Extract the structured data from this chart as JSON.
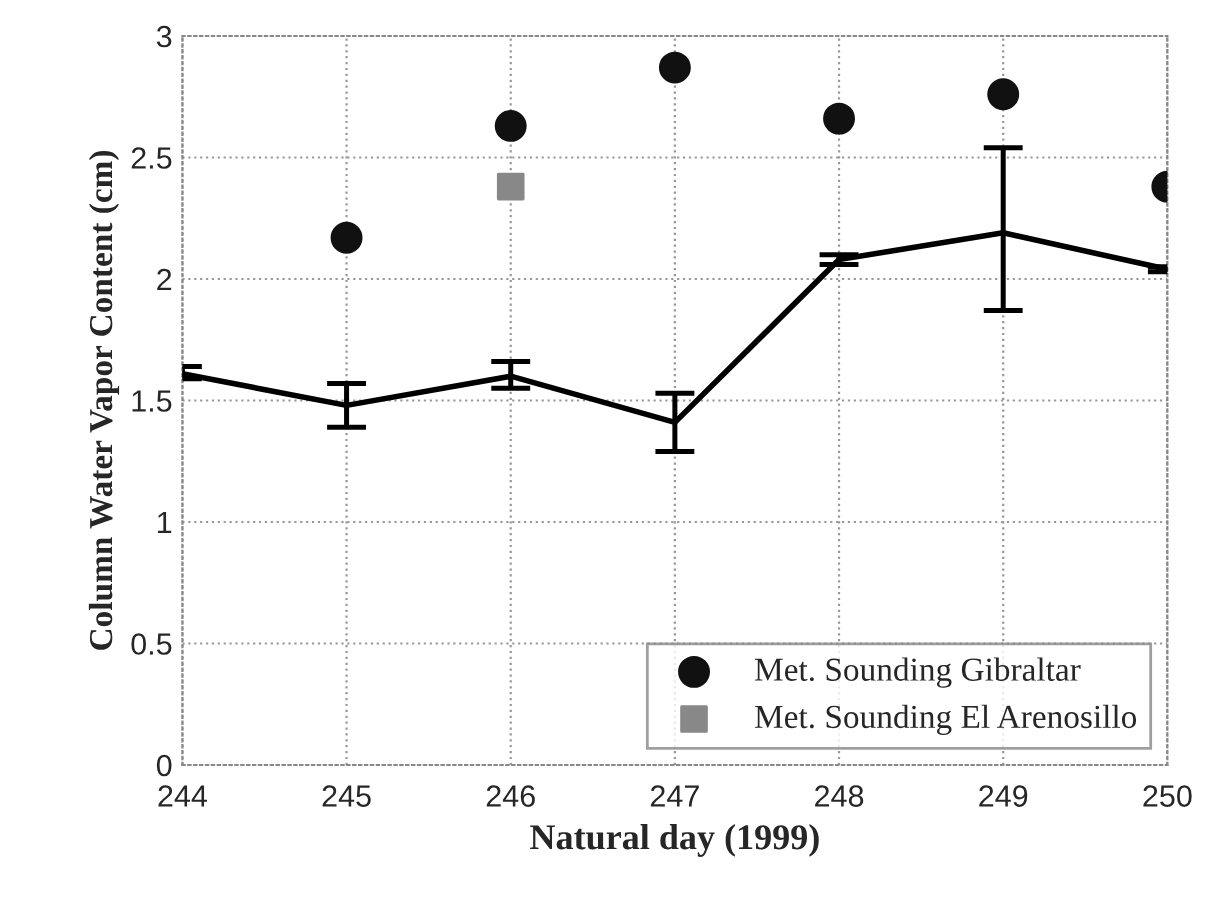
{
  "chart_data": {
    "type": "line",
    "xlabel": "Natural day (1999)",
    "ylabel": "Column Water Vapor Content (cm)",
    "xlim": [
      244,
      250
    ],
    "xticks": [
      244,
      245,
      246,
      247,
      248,
      249,
      250
    ],
    "ylim": [
      0,
      3
    ],
    "yticks": [
      0,
      0.5,
      1,
      1.5,
      2,
      2.5,
      3
    ],
    "grid": true,
    "legend": "bottom right",
    "series": [
      {
        "color": "#000000",
        "x": [
          244,
          245,
          246,
          247,
          248,
          249,
          250
        ],
        "values": [
          1.61,
          1.48,
          1.6,
          1.41,
          2.08,
          2.19,
          2.04
        ],
        "errors": [
          [
            1.59,
            1.64
          ],
          [
            1.39,
            1.57
          ],
          [
            1.55,
            1.66
          ],
          [
            1.29,
            1.53
          ],
          [
            2.06,
            2.1
          ],
          [
            1.87,
            2.54
          ],
          [
            2.03,
            2.05
          ]
        ]
      },
      {
        "type": "scatter",
        "name": "Met. Sounding Gibraltar",
        "color": "#111111",
        "marker": "circle",
        "x": [
          245,
          246,
          247,
          248,
          249,
          250
        ],
        "values": [
          2.17,
          2.63,
          2.87,
          2.66,
          2.76,
          2.38
        ]
      },
      {
        "type": "scatter",
        "name": "Met. Sounding El Arenosillo",
        "color": "#888888",
        "marker": "square",
        "x": [
          246
        ],
        "values": [
          2.38
        ]
      }
    ]
  }
}
